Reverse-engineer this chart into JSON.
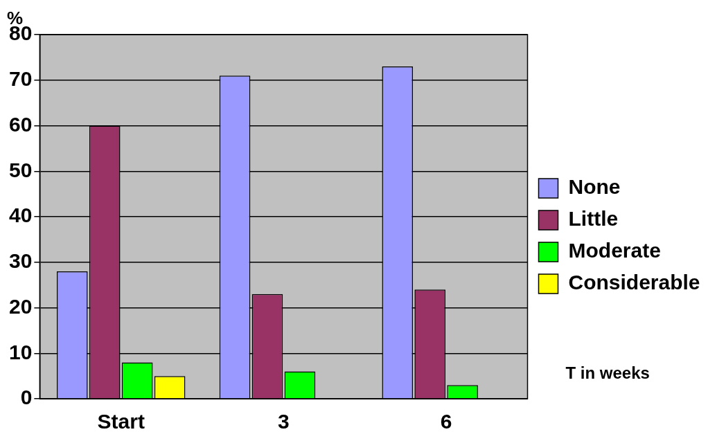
{
  "chart_data": {
    "type": "bar",
    "ylabel": "%",
    "xlabel": "T in weeks",
    "categories": [
      "Start",
      "3",
      "6"
    ],
    "series": [
      {
        "name": "None",
        "color": "#9999ff",
        "values": [
          28,
          71,
          73
        ]
      },
      {
        "name": "Little",
        "color": "#993366",
        "values": [
          60,
          23,
          24
        ]
      },
      {
        "name": "Moderate",
        "color": "#00ff00",
        "values": [
          8,
          6,
          3
        ]
      },
      {
        "name": "Considerable",
        "color": "#ffff00",
        "values": [
          5,
          0,
          0
        ]
      }
    ],
    "ylim": [
      0,
      80
    ],
    "yticks": [
      0,
      10,
      20,
      30,
      40,
      50,
      60,
      70,
      80
    ],
    "grid": "y",
    "legend": "right"
  }
}
